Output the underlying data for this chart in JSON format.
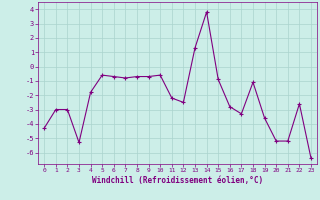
{
  "x": [
    0,
    1,
    2,
    3,
    4,
    5,
    6,
    7,
    8,
    9,
    10,
    11,
    12,
    13,
    14,
    15,
    16,
    17,
    18,
    19,
    20,
    21,
    22,
    23
  ],
  "y": [
    -4.3,
    -3.0,
    -3.0,
    -5.3,
    -1.8,
    -0.6,
    -0.7,
    -0.8,
    -0.7,
    -0.7,
    -0.6,
    -2.2,
    -2.5,
    1.3,
    3.8,
    -0.9,
    -2.8,
    -3.3,
    -1.1,
    -3.6,
    -5.2,
    -5.2,
    -2.6,
    -6.4
  ],
  "xlabel": "Windchill (Refroidissement éolien,°C)",
  "ylim": [
    -6.8,
    4.5
  ],
  "xlim": [
    -0.5,
    23.5
  ],
  "yticks": [
    -6,
    -5,
    -4,
    -3,
    -2,
    -1,
    0,
    1,
    2,
    3,
    4
  ],
  "xticks": [
    0,
    1,
    2,
    3,
    4,
    5,
    6,
    7,
    8,
    9,
    10,
    11,
    12,
    13,
    14,
    15,
    16,
    17,
    18,
    19,
    20,
    21,
    22,
    23
  ],
  "line_color": "#800080",
  "marker": "+",
  "bg_color": "#cceee8",
  "grid_color": "#aad4ce",
  "tick_color": "#800080",
  "label_color": "#800080",
  "font_family": "monospace"
}
